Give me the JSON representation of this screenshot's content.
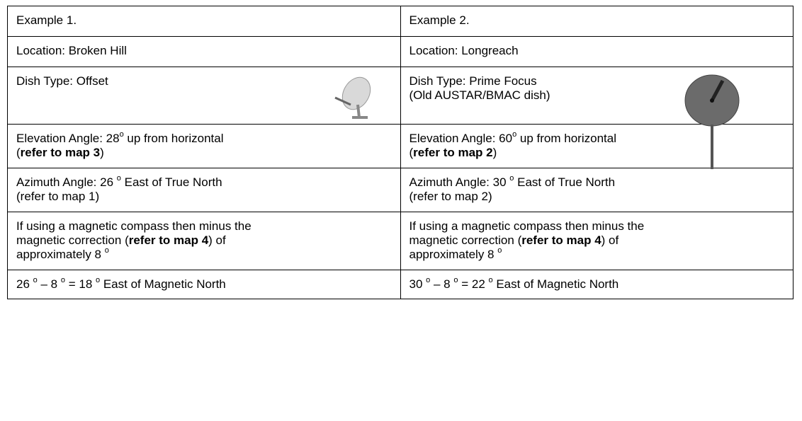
{
  "table": {
    "rows": [
      [
        [
          [
            {
              "text": "Example 1."
            }
          ]
        ],
        [
          [
            {
              "text": "Example 2."
            }
          ]
        ]
      ],
      [
        [
          [
            {
              "text": "Location: Broken Hill"
            }
          ]
        ],
        [
          [
            {
              "text": "Location: Longreach"
            }
          ]
        ]
      ],
      [
        [
          [
            {
              "text": "Dish Type: Offset"
            }
          ]
        ],
        [
          [
            {
              "text": "Dish Type: Prime Focus"
            }
          ],
          [
            {
              "text": "(Old AUSTAR/BMAC dish)"
            }
          ]
        ]
      ],
      [
        [
          [
            {
              "text": "Elevation Angle: 28"
            },
            {
              "sup": "o"
            },
            {
              "text": " up from horizontal"
            }
          ],
          [
            {
              "text": "("
            },
            {
              "bold": "refer to map 3"
            },
            {
              "text": ")"
            }
          ]
        ],
        [
          [
            {
              "text": "Elevation Angle: 60"
            },
            {
              "sup": "o"
            },
            {
              "text": " up from horizontal"
            }
          ],
          [
            {
              "text": "("
            },
            {
              "bold": "refer to map 2"
            },
            {
              "text": ")"
            }
          ]
        ]
      ],
      [
        [
          [
            {
              "text": "Azimuth Angle: 26 "
            },
            {
              "sup": "o"
            },
            {
              "text": " East of True North"
            }
          ],
          [
            {
              "text": "(refer to map 1)"
            }
          ]
        ],
        [
          [
            {
              "text": "Azimuth Angle: 30 "
            },
            {
              "sup": "o"
            },
            {
              "text": " East of True North"
            }
          ],
          [
            {
              "text": "(refer to map 2)"
            }
          ]
        ]
      ],
      [
        [
          [
            {
              "text": "If using a magnetic compass then minus the"
            }
          ],
          [
            {
              "text": "magnetic correction ("
            },
            {
              "bold": "refer to map 4"
            },
            {
              "text": ") of"
            }
          ],
          [
            {
              "text": "approximately 8 "
            },
            {
              "sup": "o"
            }
          ]
        ],
        [
          [
            {
              "text": "If using a magnetic compass then minus the"
            }
          ],
          [
            {
              "text": "magnetic correction ("
            },
            {
              "bold": "refer to map 4"
            },
            {
              "text": ") of"
            }
          ],
          [
            {
              "text": "approximately 8 "
            },
            {
              "sup": "o"
            }
          ]
        ]
      ],
      [
        [
          [
            {
              "text": "26 "
            },
            {
              "sup": "o"
            },
            {
              "text": " – 8 "
            },
            {
              "sup": "o"
            },
            {
              "text": " = 18 "
            },
            {
              "sup": "o"
            },
            {
              "text": " East of Magnetic North"
            }
          ]
        ],
        [
          [
            {
              "text": "30 "
            },
            {
              "sup": "o"
            },
            {
              "text": " – 8 "
            },
            {
              "sup": "o"
            },
            {
              "text": " = 22 "
            },
            {
              "sup": "o"
            },
            {
              "text": " East of Magnetic North"
            }
          ]
        ]
      ]
    ]
  }
}
